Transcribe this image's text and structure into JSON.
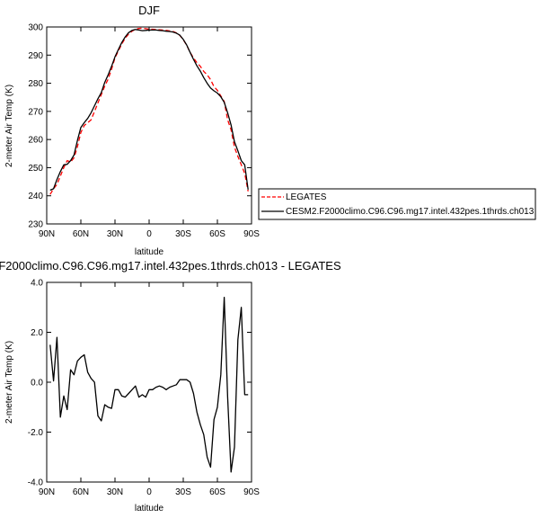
{
  "chart_data": [
    {
      "type": "line",
      "title": "DJF",
      "xlabel": "latitude",
      "ylabel": "2-meter Air Temp (K)",
      "xlim": [
        90,
        -90
      ],
      "ylim": [
        230,
        300
      ],
      "xticks": [
        90,
        60,
        30,
        0,
        -30,
        -60,
        -90
      ],
      "xtick_labels": [
        "90N",
        "60N",
        "30N",
        "0",
        "30S",
        "60S",
        "90S"
      ],
      "yticks": [
        230,
        240,
        250,
        260,
        270,
        280,
        290,
        300
      ],
      "ytick_labels": [
        "230",
        "240",
        "250",
        "260",
        "270",
        "280",
        "290",
        "300"
      ],
      "grid": false,
      "legend_position": "right",
      "series": [
        {
          "name": "LEGATES",
          "color": "#ff0000",
          "style": "dashed",
          "x": [
            87,
            84,
            81,
            78,
            75,
            72,
            69,
            66,
            63,
            60,
            57,
            54,
            51,
            48,
            45,
            42,
            39,
            36,
            33,
            30,
            27,
            24,
            21,
            18,
            15,
            12,
            9,
            6,
            3,
            0,
            -3,
            -6,
            -9,
            -12,
            -15,
            -18,
            -21,
            -24,
            -27,
            -30,
            -33,
            -36,
            -39,
            -42,
            -45,
            -48,
            -51,
            -54,
            -57,
            -60,
            -63,
            -66,
            -69,
            -72,
            -75,
            -78,
            -81,
            -84,
            -87
          ],
          "y": [
            240.5,
            242.5,
            244,
            247,
            250,
            252.5,
            252,
            253.5,
            257.5,
            262.5,
            265,
            266,
            267,
            270,
            273,
            276,
            279,
            281.5,
            285,
            289,
            291.5,
            294,
            296,
            297.5,
            298.5,
            299.2,
            299.5,
            299.6,
            299.4,
            299.2,
            299.2,
            299.1,
            299,
            298.9,
            298.8,
            298.6,
            298.4,
            297.9,
            297,
            295.5,
            293.5,
            291,
            289,
            287.3,
            286,
            284.2,
            283,
            281.3,
            278.8,
            277.5,
            275.5,
            273.5,
            267,
            263.5,
            257.3,
            254,
            251,
            248,
            241.6
          ]
        },
        {
          "name": "CESM2.F2000climo.C96.C96.mg17.intel.432pes.1thrds.ch013",
          "color": "#000000",
          "style": "solid",
          "x": [
            87,
            84,
            81,
            78,
            75,
            72,
            69,
            66,
            63,
            60,
            57,
            54,
            51,
            48,
            45,
            42,
            39,
            36,
            33,
            30,
            27,
            24,
            21,
            18,
            15,
            12,
            9,
            6,
            3,
            0,
            -3,
            -6,
            -9,
            -12,
            -15,
            -18,
            -21,
            -24,
            -27,
            -30,
            -33,
            -36,
            -39,
            -42,
            -45,
            -48,
            -51,
            -54,
            -57,
            -60,
            -63,
            -66,
            -69,
            -72,
            -75,
            -78,
            -81,
            -84,
            -87
          ],
          "y": [
            242,
            242.5,
            245.8,
            248.6,
            251,
            251.2,
            252.5,
            254.5,
            259.7,
            264.3,
            266,
            267.5,
            269.5,
            272,
            274.5,
            276.7,
            280.3,
            283,
            286,
            289.4,
            292,
            294.5,
            296.5,
            298,
            298.8,
            299.1,
            298.9,
            298.7,
            298.8,
            298.9,
            298.9,
            298.9,
            298.8,
            298.7,
            298.5,
            298.4,
            298.2,
            297.8,
            297.1,
            295.6,
            293.6,
            291,
            288.5,
            286.2,
            284.3,
            282,
            280,
            278.3,
            277.3,
            276.5,
            275.2,
            273.2,
            269.5,
            265.2,
            259.2,
            256,
            252.5,
            251,
            242.2
          ]
        }
      ]
    },
    {
      "type": "line",
      "title": "F2000climo.C96.C96.mg17.intel.432pes.1thrds.ch013 - LEGATES",
      "xlabel": "latitude",
      "ylabel": "2-meter Air Temp (K)",
      "xlim": [
        90,
        -90
      ],
      "ylim": [
        -4,
        4
      ],
      "xticks": [
        90,
        60,
        30,
        0,
        -30,
        -60,
        -90
      ],
      "xtick_labels": [
        "90N",
        "60N",
        "30N",
        "0",
        "30S",
        "60S",
        "90S"
      ],
      "yticks": [
        -4,
        -2,
        0,
        2,
        4
      ],
      "ytick_labels": [
        "-4.0",
        "-2.0",
        "0.0",
        "2.0",
        "4.0"
      ],
      "grid": false,
      "series": [
        {
          "name": "",
          "color": "#000000",
          "style": "solid",
          "x": [
            87,
            84,
            81,
            78,
            75,
            72,
            69,
            66,
            63,
            60,
            57,
            54,
            51,
            48,
            45,
            42,
            39,
            36,
            33,
            30,
            27,
            24,
            21,
            18,
            15,
            12,
            9,
            6,
            3,
            0,
            -3,
            -6,
            -9,
            -12,
            -15,
            -18,
            -21,
            -24,
            -27,
            -30,
            -33,
            -36,
            -39,
            -42,
            -45,
            -48,
            -51,
            -54,
            -57,
            -60,
            -63,
            -66,
            -69,
            -72,
            -75,
            -78,
            -81,
            -84,
            -87
          ],
          "y": [
            1.5,
            0.05,
            1.8,
            -1.4,
            -0.55,
            -1.1,
            0.5,
            0.3,
            0.85,
            1.0,
            1.1,
            0.4,
            0.15,
            0.0,
            -1.35,
            -1.55,
            -0.9,
            -1.0,
            -1.05,
            -0.3,
            -0.3,
            -0.55,
            -0.6,
            -0.45,
            -0.3,
            -0.15,
            -0.6,
            -0.5,
            -0.6,
            -0.3,
            -0.3,
            -0.2,
            -0.15,
            -0.2,
            -0.3,
            -0.2,
            -0.15,
            -0.1,
            0.1,
            0.1,
            0.1,
            0.0,
            -0.45,
            -1.2,
            -1.7,
            -2.1,
            -3.0,
            -3.4,
            -1.5,
            -1.0,
            0.3,
            3.4,
            -0.6,
            -3.6,
            -2.6,
            1.7,
            3.0,
            -0.5,
            -0.5
          ]
        }
      ]
    }
  ]
}
